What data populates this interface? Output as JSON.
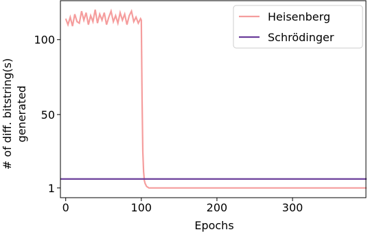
{
  "chart_data": {
    "type": "line",
    "xlabel": "Epochs",
    "ylabel": [
      "# of diff. bitstring(s)",
      "generated"
    ],
    "xlim": [
      -7,
      398
    ],
    "ylim": [
      -5.5,
      126
    ],
    "xticks": [
      0,
      100,
      200,
      300
    ],
    "yticks": [
      1,
      50,
      100
    ],
    "legend": "upper right",
    "series": [
      {
        "name": "Heisenberg",
        "color": "#f59d9d",
        "x": [
          0,
          3,
          6,
          9,
          12,
          15,
          18,
          21,
          24,
          27,
          30,
          33,
          36,
          39,
          42,
          45,
          48,
          51,
          54,
          57,
          60,
          63,
          66,
          69,
          72,
          75,
          78,
          81,
          84,
          87,
          90,
          93,
          96,
          99,
          100,
          101,
          102,
          103,
          104,
          105,
          107,
          110,
          398
        ],
        "values": [
          114,
          110,
          115,
          109,
          117,
          112,
          111,
          119,
          113,
          118,
          110,
          116,
          112,
          120,
          111,
          117,
          113,
          118,
          110,
          115,
          119,
          112,
          116,
          111,
          118,
          113,
          117,
          110,
          116,
          119,
          112,
          115,
          111,
          114,
          113,
          60,
          25,
          12,
          6,
          4,
          2,
          1,
          1
        ]
      },
      {
        "name": "Schrödinger",
        "color": "#6a3d9a",
        "x": [
          -7,
          398
        ],
        "values": [
          7,
          7
        ]
      }
    ]
  }
}
